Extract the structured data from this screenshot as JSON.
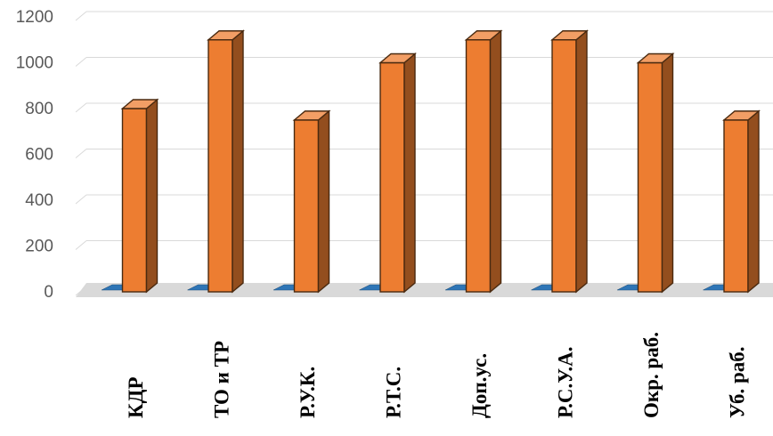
{
  "chart_data": {
    "type": "bar",
    "style": "3d-column",
    "categories": [
      "КДР",
      "ТО и ТР",
      "Р.У.К.",
      "Р.Т.С.",
      "Доп.ус.",
      "Р.С.У.А.",
      "Окр. раб.",
      "Уб. раб."
    ],
    "series": [
      {
        "values": [
          0,
          0,
          0,
          0,
          0,
          0,
          0,
          0
        ],
        "color": "#2e75b6"
      },
      {
        "values": [
          800,
          1100,
          750,
          1000,
          1100,
          1100,
          1000,
          750
        ],
        "color": "#ed7d31"
      }
    ],
    "yticks": [
      0,
      200,
      400,
      600,
      800,
      1000,
      1200
    ],
    "ylim": [
      0,
      1200
    ],
    "grid": true,
    "legend": "none",
    "xlabel_orientation": "vertical"
  }
}
